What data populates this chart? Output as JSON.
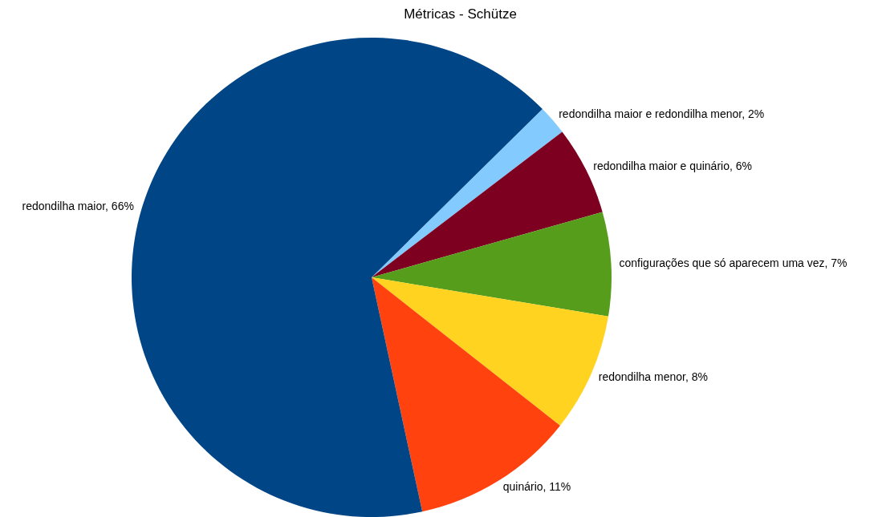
{
  "chart_data": {
    "type": "pie",
    "title": "Métricas - Schütze",
    "categories": [
      "redondilha maior e redondilha menor",
      "redondilha maior e quinário",
      "configurações que só aparecem uma vez",
      "redondilha menor",
      "quinário",
      "redondilha maior"
    ],
    "values": [
      2,
      6,
      7,
      8,
      11,
      66
    ],
    "value_labels": [
      "2%",
      "6%",
      "7%",
      "8%",
      "11%",
      "66%"
    ],
    "colors": [
      "#83caff",
      "#7e0021",
      "#579d1c",
      "#ffd320",
      "#ff420e",
      "#004586"
    ],
    "legend": false
  }
}
